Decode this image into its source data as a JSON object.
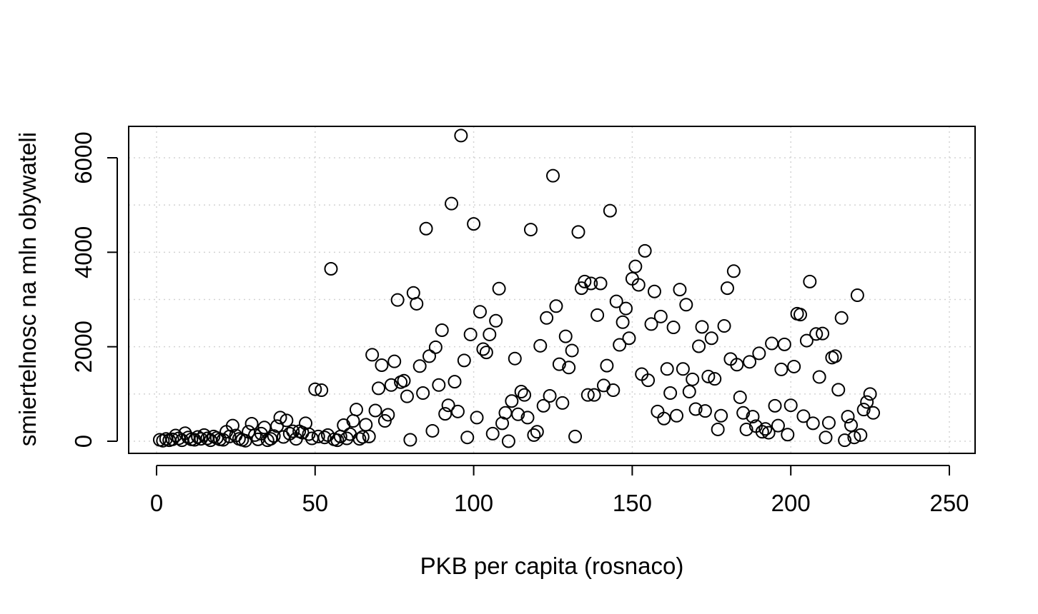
{
  "chart_data": {
    "type": "scatter",
    "title": "",
    "xlabel": "PKB per capita (rosnaco)",
    "ylabel": "smiertelnosc na mln obywateli",
    "xlim": [
      0,
      250
    ],
    "ylim": [
      0,
      6000
    ],
    "x_ticks": [
      0,
      50,
      100,
      150,
      200,
      250
    ],
    "y_ticks": [
      0,
      2000,
      4000,
      6000
    ],
    "grid": true,
    "grid_style": "dotted",
    "x_tick_labels": [
      "0",
      "50",
      "100",
      "150",
      "200",
      "250"
    ],
    "y_tick_labels": [
      "0",
      "2000",
      "4000",
      "6000"
    ],
    "marker": "open-circle",
    "marker_color": "#000000",
    "points": [
      [
        1,
        30
      ],
      [
        2,
        10
      ],
      [
        3,
        50
      ],
      [
        4,
        20
      ],
      [
        5,
        40
      ],
      [
        6,
        120
      ],
      [
        7,
        60
      ],
      [
        8,
        20
      ],
      [
        9,
        170
      ],
      [
        10,
        80
      ],
      [
        11,
        40
      ],
      [
        12,
        30
      ],
      [
        13,
        90
      ],
      [
        14,
        50
      ],
      [
        15,
        130
      ],
      [
        16,
        60
      ],
      [
        17,
        20
      ],
      [
        18,
        100
      ],
      [
        19,
        70
      ],
      [
        20,
        40
      ],
      [
        21,
        30
      ],
      [
        22,
        200
      ],
      [
        23,
        100
      ],
      [
        24,
        330
      ],
      [
        25,
        120
      ],
      [
        26,
        50
      ],
      [
        27,
        30
      ],
      [
        28,
        10
      ],
      [
        29,
        200
      ],
      [
        30,
        370
      ],
      [
        31,
        130
      ],
      [
        32,
        40
      ],
      [
        33,
        160
      ],
      [
        34,
        290
      ],
      [
        35,
        20
      ],
      [
        36,
        50
      ],
      [
        37,
        110
      ],
      [
        38,
        320
      ],
      [
        39,
        500
      ],
      [
        40,
        90
      ],
      [
        41,
        440
      ],
      [
        42,
        160
      ],
      [
        43,
        210
      ],
      [
        44,
        50
      ],
      [
        45,
        210
      ],
      [
        46,
        180
      ],
      [
        47,
        380
      ],
      [
        48,
        150
      ],
      [
        49,
        60
      ],
      [
        50,
        1100
      ],
      [
        51,
        100
      ],
      [
        52,
        1080
      ],
      [
        53,
        80
      ],
      [
        54,
        130
      ],
      [
        55,
        3650
      ],
      [
        56,
        40
      ],
      [
        57,
        20
      ],
      [
        58,
        100
      ],
      [
        59,
        340
      ],
      [
        60,
        60
      ],
      [
        61,
        150
      ],
      [
        62,
        430
      ],
      [
        63,
        670
      ],
      [
        64,
        50
      ],
      [
        65,
        90
      ],
      [
        66,
        350
      ],
      [
        67,
        100
      ],
      [
        68,
        1830
      ],
      [
        69,
        650
      ],
      [
        70,
        1120
      ],
      [
        71,
        1610
      ],
      [
        72,
        430
      ],
      [
        73,
        560
      ],
      [
        74,
        1190
      ],
      [
        75,
        1690
      ],
      [
        76,
        2990
      ],
      [
        77,
        1250
      ],
      [
        78,
        1280
      ],
      [
        79,
        950
      ],
      [
        80,
        30
      ],
      [
        81,
        3140
      ],
      [
        82,
        2910
      ],
      [
        83,
        1590
      ],
      [
        84,
        1020
      ],
      [
        85,
        4500
      ],
      [
        86,
        1800
      ],
      [
        87,
        220
      ],
      [
        88,
        1990
      ],
      [
        89,
        1190
      ],
      [
        90,
        2350
      ],
      [
        91,
        580
      ],
      [
        92,
        760
      ],
      [
        93,
        5030
      ],
      [
        94,
        1260
      ],
      [
        95,
        630
      ],
      [
        96,
        6470
      ],
      [
        97,
        1710
      ],
      [
        98,
        80
      ],
      [
        99,
        2260
      ],
      [
        100,
        4600
      ],
      [
        101,
        500
      ],
      [
        102,
        2740
      ],
      [
        103,
        1950
      ],
      [
        104,
        1880
      ],
      [
        105,
        2260
      ],
      [
        106,
        160
      ],
      [
        107,
        2550
      ],
      [
        108,
        3230
      ],
      [
        109,
        380
      ],
      [
        110,
        600
      ],
      [
        111,
        0
      ],
      [
        112,
        850
      ],
      [
        113,
        1750
      ],
      [
        114,
        570
      ],
      [
        115,
        1050
      ],
      [
        116,
        980
      ],
      [
        117,
        500
      ],
      [
        118,
        4480
      ],
      [
        119,
        130
      ],
      [
        120,
        200
      ],
      [
        121,
        2020
      ],
      [
        122,
        750
      ],
      [
        123,
        2610
      ],
      [
        124,
        960
      ],
      [
        125,
        5620
      ],
      [
        126,
        2860
      ],
      [
        127,
        1630
      ],
      [
        128,
        810
      ],
      [
        129,
        2220
      ],
      [
        130,
        1560
      ],
      [
        131,
        1920
      ],
      [
        132,
        100
      ],
      [
        133,
        4430
      ],
      [
        134,
        3240
      ],
      [
        135,
        3380
      ],
      [
        136,
        980
      ],
      [
        137,
        3340
      ],
      [
        138,
        980
      ],
      [
        139,
        2670
      ],
      [
        140,
        3340
      ],
      [
        141,
        1180
      ],
      [
        142,
        1600
      ],
      [
        143,
        4880
      ],
      [
        144,
        1080
      ],
      [
        145,
        2960
      ],
      [
        146,
        2040
      ],
      [
        147,
        2520
      ],
      [
        148,
        2810
      ],
      [
        149,
        2180
      ],
      [
        150,
        3440
      ],
      [
        151,
        3700
      ],
      [
        152,
        3310
      ],
      [
        153,
        1420
      ],
      [
        154,
        4030
      ],
      [
        155,
        1290
      ],
      [
        156,
        2480
      ],
      [
        157,
        3170
      ],
      [
        158,
        630
      ],
      [
        159,
        2640
      ],
      [
        160,
        480
      ],
      [
        161,
        1530
      ],
      [
        162,
        1020
      ],
      [
        163,
        2410
      ],
      [
        164,
        540
      ],
      [
        165,
        3210
      ],
      [
        166,
        1530
      ],
      [
        167,
        2890
      ],
      [
        168,
        1050
      ],
      [
        169,
        1310
      ],
      [
        170,
        680
      ],
      [
        171,
        2010
      ],
      [
        172,
        2420
      ],
      [
        173,
        640
      ],
      [
        174,
        1370
      ],
      [
        175,
        2180
      ],
      [
        176,
        1320
      ],
      [
        177,
        250
      ],
      [
        178,
        540
      ],
      [
        179,
        2440
      ],
      [
        180,
        3240
      ],
      [
        181,
        1740
      ],
      [
        182,
        3600
      ],
      [
        183,
        1620
      ],
      [
        184,
        930
      ],
      [
        185,
        600
      ],
      [
        186,
        250
      ],
      [
        187,
        1680
      ],
      [
        188,
        520
      ],
      [
        189,
        320
      ],
      [
        190,
        1860
      ],
      [
        191,
        200
      ],
      [
        192,
        260
      ],
      [
        193,
        180
      ],
      [
        194,
        2070
      ],
      [
        195,
        750
      ],
      [
        196,
        330
      ],
      [
        197,
        1520
      ],
      [
        198,
        2050
      ],
      [
        199,
        140
      ],
      [
        200,
        760
      ],
      [
        201,
        1580
      ],
      [
        202,
        2700
      ],
      [
        203,
        2680
      ],
      [
        204,
        530
      ],
      [
        205,
        2130
      ],
      [
        206,
        3380
      ],
      [
        207,
        380
      ],
      [
        208,
        2270
      ],
      [
        209,
        1360
      ],
      [
        210,
        2280
      ],
      [
        211,
        80
      ],
      [
        212,
        390
      ],
      [
        213,
        1770
      ],
      [
        214,
        1800
      ],
      [
        215,
        1090
      ],
      [
        216,
        2610
      ],
      [
        217,
        20
      ],
      [
        218,
        520
      ],
      [
        219,
        340
      ],
      [
        220,
        80
      ],
      [
        221,
        3090
      ],
      [
        222,
        130
      ],
      [
        223,
        670
      ],
      [
        224,
        830
      ],
      [
        225,
        1000
      ],
      [
        226,
        600
      ]
    ]
  }
}
